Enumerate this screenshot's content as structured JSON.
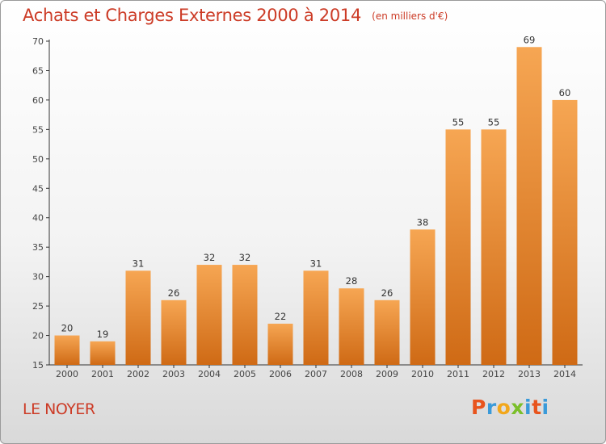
{
  "chart_data": {
    "type": "bar",
    "title": "Achats et Charges Externes 2000 à 2014",
    "subtitle": "(en milliers d'€)",
    "categories": [
      "2000",
      "2001",
      "2002",
      "2003",
      "2004",
      "2005",
      "2006",
      "2007",
      "2008",
      "2009",
      "2010",
      "2011",
      "2012",
      "2013",
      "2014"
    ],
    "values": [
      20,
      19,
      31,
      26,
      32,
      32,
      22,
      31,
      28,
      26,
      38,
      55,
      55,
      69,
      60
    ],
    "ylim": [
      15,
      70
    ],
    "yticks": [
      15,
      20,
      25,
      30,
      35,
      40,
      45,
      50,
      55,
      60,
      65,
      70
    ],
    "xlabel": "",
    "ylabel": "",
    "grid": false,
    "bar_color_top": "#f6a653",
    "bar_color_bottom": "#cf6a15"
  },
  "footer": {
    "commune": "LE NOYER",
    "brand": "Proxiti",
    "brand_colors": [
      "#e8541d",
      "#3a9ad9",
      "#f2a71b",
      "#7bbf2a",
      "#3a9ad9",
      "#e8541d",
      "#3a9ad9"
    ]
  },
  "colors": {
    "title": "#cc3b26",
    "axis": "#333333"
  }
}
